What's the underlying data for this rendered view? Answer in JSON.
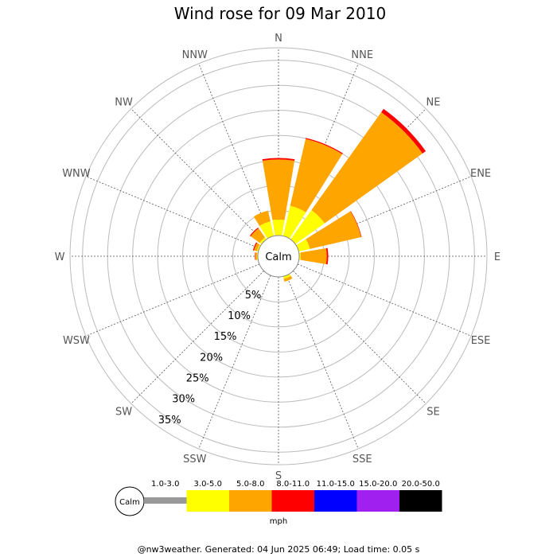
{
  "chart_data": {
    "type": "windrose",
    "title": "Wind rose for 09 Mar 2010",
    "calm_label": "Calm",
    "directions": [
      "N",
      "NNE",
      "NE",
      "ENE",
      "E",
      "ESE",
      "SE",
      "SSE",
      "S",
      "SSW",
      "SW",
      "WSW",
      "W",
      "WNW",
      "NW",
      "NNW"
    ],
    "ring_labels": [
      "5%",
      "10%",
      "15%",
      "20%",
      "25%",
      "30%",
      "35%"
    ],
    "ring_values": [
      5,
      10,
      15,
      20,
      25,
      30,
      35
    ],
    "max_percent": 37.5,
    "calm_percent": 3.2,
    "speed_bins": [
      {
        "label": "1.0-3.0",
        "color": "#999999"
      },
      {
        "label": "3.0-5.0",
        "color": "#ffff00"
      },
      {
        "label": "5.0-8.0",
        "color": "#ffa500"
      },
      {
        "label": "8.0-11.0",
        "color": "#ff0000"
      },
      {
        "label": "11.0-15.0",
        "color": "#0000ff"
      },
      {
        "label": "15.0-20.0",
        "color": "#a020f0"
      },
      {
        "label": "20.0-50.0",
        "color": "#000000"
      }
    ],
    "speed_unit": "mph",
    "series": [
      {
        "direction": "N",
        "values": [
          0,
          3.2,
          12.0,
          0.3,
          0,
          0,
          0
        ]
      },
      {
        "direction": "NNE",
        "values": [
          0,
          6.2,
          13.7,
          0.2,
          0,
          0,
          0
        ]
      },
      {
        "direction": "NE",
        "values": [
          0,
          7.2,
          24.0,
          0.8,
          0,
          0,
          0
        ]
      },
      {
        "direction": "ENE",
        "values": [
          0,
          2.3,
          10.5,
          0.1,
          0,
          0,
          0
        ]
      },
      {
        "direction": "E",
        "values": [
          0,
          0.3,
          5.2,
          0.3,
          0,
          0,
          0
        ]
      },
      {
        "direction": "ESE",
        "values": [
          0,
          0,
          0,
          0,
          0,
          0,
          0
        ]
      },
      {
        "direction": "SE",
        "values": [
          0,
          0,
          0,
          0,
          0,
          0,
          0
        ]
      },
      {
        "direction": "SSE",
        "values": [
          0,
          0.5,
          0.6,
          0,
          0,
          0,
          0
        ]
      },
      {
        "direction": "S",
        "values": [
          0,
          0,
          0,
          0,
          0,
          0,
          0
        ]
      },
      {
        "direction": "SSW",
        "values": [
          0,
          0,
          0,
          0,
          0,
          0,
          0
        ]
      },
      {
        "direction": "SW",
        "values": [
          0,
          0,
          0,
          0,
          0,
          0,
          0
        ]
      },
      {
        "direction": "WSW",
        "values": [
          0,
          0,
          0,
          0,
          0,
          0,
          0
        ]
      },
      {
        "direction": "W",
        "values": [
          0,
          0.2,
          0.3,
          0.1,
          0,
          0,
          0
        ]
      },
      {
        "direction": "WNW",
        "values": [
          0,
          0.3,
          0.6,
          0.2,
          0,
          0,
          0
        ]
      },
      {
        "direction": "NW",
        "values": [
          0,
          0.5,
          2.2,
          0.2,
          0,
          0,
          0
        ]
      },
      {
        "direction": "NNW",
        "values": [
          0,
          3.0,
          2.2,
          0,
          0,
          0,
          0
        ]
      }
    ]
  },
  "footer": "@nw3weather. Generated: 04 Jun 2025 06:49; Load time: 0.05 s"
}
